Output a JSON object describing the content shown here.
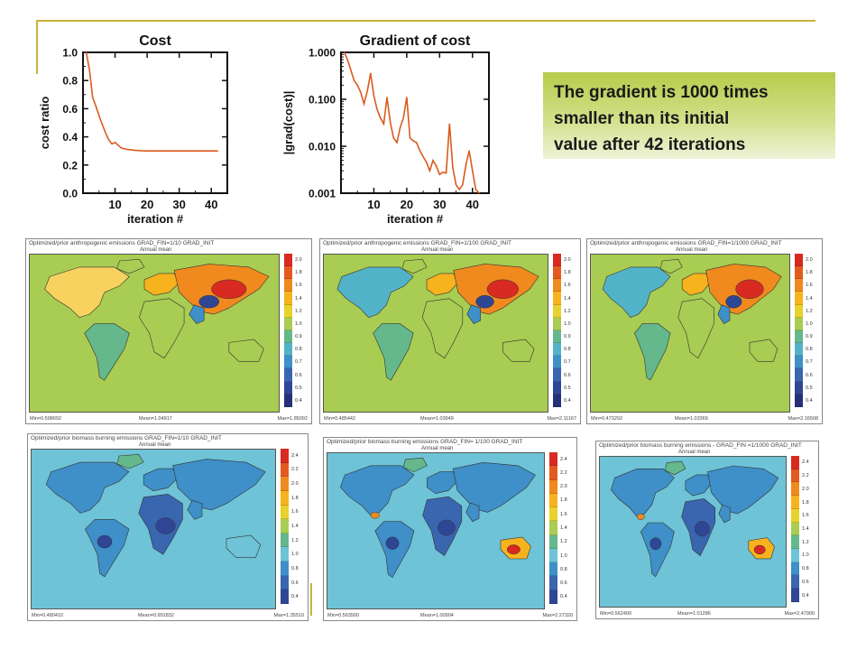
{
  "callout": {
    "lines": [
      "The gradient is 1000 times",
      "smaller than its initial",
      "value after 42 iterations"
    ]
  },
  "chart_data": [
    {
      "type": "line",
      "title": "Cost",
      "xlabel": "iteration #",
      "ylabel": "cost ratio",
      "xlim": [
        0,
        45
      ],
      "ylim": [
        0.0,
        1.0
      ],
      "xticks": [
        "10",
        "20",
        "30",
        "40"
      ],
      "yticks": [
        "0.0",
        "0.2",
        "0.4",
        "0.6",
        "0.8",
        "1.0"
      ],
      "x": [
        1,
        2,
        3,
        4,
        5,
        6,
        7,
        8,
        9,
        10,
        12,
        14,
        16,
        18,
        20,
        25,
        30,
        35,
        40,
        42
      ],
      "y": [
        1.0,
        0.88,
        0.68,
        0.62,
        0.55,
        0.49,
        0.43,
        0.38,
        0.35,
        0.36,
        0.32,
        0.31,
        0.305,
        0.302,
        0.3,
        0.3,
        0.3,
        0.3,
        0.3,
        0.3
      ],
      "color": "#d95b1e",
      "grid": false
    },
    {
      "type": "line",
      "title": "Gradient of cost",
      "xlabel": "iteration #",
      "ylabel": "|grad(cost)|",
      "yscale": "log",
      "xlim": [
        0,
        45
      ],
      "ylim": [
        0.001,
        1.0
      ],
      "xticks": [
        "10",
        "20",
        "30",
        "40"
      ],
      "yticks": [
        "0.001",
        "0.010",
        "0.100",
        "1.000"
      ],
      "x": [
        1,
        2,
        3,
        4,
        5,
        6,
        7,
        8,
        9,
        10,
        11,
        12,
        13,
        14,
        15,
        16,
        17,
        18,
        19,
        20,
        21,
        22,
        23,
        24,
        25,
        26,
        27,
        28,
        29,
        30,
        31,
        32,
        33,
        34,
        35,
        36,
        37,
        38,
        39,
        40,
        41,
        42
      ],
      "y": [
        1.0,
        0.7,
        0.42,
        0.25,
        0.2,
        0.14,
        0.08,
        0.15,
        0.36,
        0.12,
        0.06,
        0.04,
        0.03,
        0.11,
        0.032,
        0.015,
        0.012,
        0.025,
        0.04,
        0.11,
        0.015,
        0.013,
        0.012,
        0.008,
        0.006,
        0.0045,
        0.003,
        0.005,
        0.0038,
        0.0025,
        0.0028,
        0.0027,
        0.03,
        0.0035,
        0.0015,
        0.0012,
        0.0015,
        0.004,
        0.008,
        0.003,
        0.0012,
        0.001
      ],
      "color": "#d95b1e",
      "grid": false
    }
  ],
  "maps": [
    {
      "title": "Optimized/prior anthropogenic emissions GRAD_FIN=1/10 GRAD_INIT",
      "subtitle": "Annual mean",
      "scale": [
        "2.0",
        "1.8",
        "1.6",
        "1.4",
        "1.2",
        "1.0",
        "0.9",
        "0.8",
        "0.7",
        "0.6",
        "0.5",
        "0.4"
      ],
      "min": "Min=0.598692",
      "mean": "Mean=1.04917",
      "max": "Max=1.85092"
    },
    {
      "title": "Optimized/prior anthropogenic emissions GRAD_FIN=1/100 GRAD_INIT",
      "subtitle": "Annual mean",
      "scale": [
        "2.0",
        "1.8",
        "1.6",
        "1.4",
        "1.2",
        "1.0",
        "0.9",
        "0.8",
        "0.7",
        "0.6",
        "0.5",
        "0.4"
      ],
      "min": "Min=0.485442",
      "mean": "Mean=1.03949",
      "max": "Max=2.11167"
    },
    {
      "title": "Optimized/prior anthropogenic emissions GRAD_FIN=1/1000 GRAD_INIT",
      "subtitle": "Annual mean",
      "scale": [
        "2.0",
        "1.8",
        "1.6",
        "1.4",
        "1.2",
        "1.0",
        "0.9",
        "0.8",
        "0.7",
        "0.6",
        "0.5",
        "0.4"
      ],
      "min": "Min=0.473292",
      "mean": "Mean=1.03369",
      "max": "Max=2.16508"
    },
    {
      "title": "Optimized/prior biomass burning emissions GRAD_FIN=1/10 GRAD_INIT",
      "subtitle": "Annual mean",
      "scale": [
        "2.4",
        "2.2",
        "2.0",
        "1.8",
        "1.6",
        "1.4",
        "1.2",
        "1.0",
        "0.8",
        "0.6",
        "0.4"
      ],
      "min": "Min=0.480410",
      "mean": "Mean=0.991832",
      "max": "Max=1.35510"
    },
    {
      "title": "Optimized/prior biomass burning emissions GRAD_FIN= 1/100 GRAD_INIT",
      "subtitle": "Annual mean",
      "scale": [
        "2.4",
        "2.2",
        "2.0",
        "1.8",
        "1.6",
        "1.4",
        "1.2",
        "1.0",
        "0.8",
        "0.6",
        "0.4"
      ],
      "min": "Min=0.563500",
      "mean": "Mean=1.00904",
      "max": "Max=2.27320"
    },
    {
      "title": "Optimized/prior biomass burning emissions - GRAD_FIN =1/1000 GRAD_INIT",
      "subtitle": "Annual mean",
      "scale": [
        "2.4",
        "2.2",
        "2.0",
        "1.8",
        "1.6",
        "1.4",
        "1.2",
        "1.0",
        "0.8",
        "0.6",
        "0.4"
      ],
      "min": "Min=0.562400",
      "mean": "Mean=1.01286",
      "max": "Max=2.47900"
    }
  ],
  "colors": {
    "anthro_scale": [
      "#d82a20",
      "#e35a20",
      "#f08a1e",
      "#f7b31e",
      "#e8d22c",
      "#a9cc52",
      "#64b88c",
      "#52b3c8",
      "#3f8fc8",
      "#3a66b0",
      "#2f4694",
      "#25307a"
    ],
    "biomass_scale": [
      "#d82a20",
      "#e35a20",
      "#f08a1e",
      "#f7b31e",
      "#e8d22c",
      "#a9cc52",
      "#64b88c",
      "#6ec3d6",
      "#3f8fc8",
      "#3a66b0",
      "#2f4694"
    ],
    "line": "#d95b1e"
  }
}
